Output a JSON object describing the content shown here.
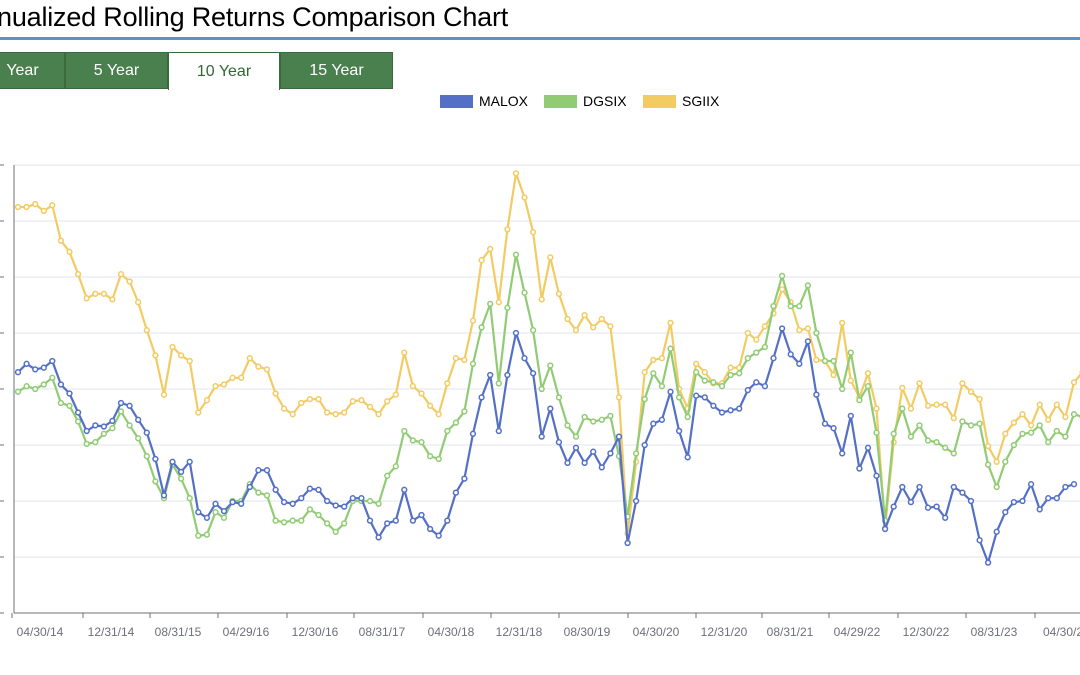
{
  "title": "nualized Rolling Returns Comparison Chart",
  "tabs": [
    {
      "label": "Year",
      "active": false
    },
    {
      "label": "5 Year",
      "active": false
    },
    {
      "label": "10 Year",
      "active": true
    },
    {
      "label": "15 Year",
      "active": false
    }
  ],
  "colors": {
    "MALOX": "#5470c6",
    "DGSIX": "#91cc75",
    "SGIIX": "#f2cb63"
  },
  "chart_data": {
    "type": "line",
    "title": "nualized Rolling Returns Comparison Chart",
    "xlabel": "",
    "ylabel": "",
    "ylim": [
      0,
      8
    ],
    "grid": true,
    "legend_position": "top-center",
    "x_tick_labels": [
      "04/30/14",
      "12/31/14",
      "08/31/15",
      "04/29/16",
      "12/30/16",
      "08/31/17",
      "04/30/18",
      "12/31/18",
      "08/30/19",
      "04/30/20",
      "12/31/20",
      "08/31/21",
      "04/29/22",
      "12/30/22",
      "08/31/23",
      "04/30/2"
    ],
    "series": [
      {
        "name": "MALOX",
        "values": [
          4.3,
          4.45,
          4.35,
          4.38,
          4.5,
          4.08,
          3.92,
          3.58,
          3.25,
          3.35,
          3.33,
          3.43,
          3.75,
          3.7,
          3.45,
          3.22,
          2.75,
          2.1,
          2.7,
          2.52,
          2.7,
          1.8,
          1.7,
          1.95,
          1.82,
          1.98,
          1.95,
          2.25,
          2.55,
          2.55,
          2.2,
          1.98,
          1.95,
          2.05,
          2.22,
          2.2,
          2.0,
          1.92,
          1.9,
          2.05,
          2.05,
          1.65,
          1.35,
          1.6,
          1.65,
          2.2,
          1.65,
          1.75,
          1.5,
          1.38,
          1.65,
          2.15,
          2.4,
          3.2,
          3.85,
          4.25,
          3.25,
          4.25,
          5.0,
          4.55,
          4.28,
          3.15,
          3.65,
          3.05,
          2.68,
          2.95,
          2.68,
          2.88,
          2.6,
          2.85,
          3.15,
          1.25,
          2.0,
          3.0,
          3.38,
          3.45,
          3.95,
          3.25,
          2.78,
          3.88,
          3.85,
          3.7,
          3.58,
          3.62,
          3.65,
          3.98,
          4.12,
          4.05,
          4.55,
          5.08,
          4.62,
          4.45,
          4.85,
          3.9,
          3.38,
          3.3,
          2.85,
          3.52,
          2.58,
          2.95,
          2.45,
          1.5,
          1.9,
          2.25,
          1.98,
          2.25,
          1.88,
          1.9,
          1.7,
          2.25,
          2.15,
          2.0,
          1.3,
          0.9,
          1.45,
          1.8,
          1.98,
          2.0,
          2.3,
          1.85,
          2.05,
          2.05,
          2.25,
          2.3
        ]
      },
      {
        "name": "DGSIX",
        "values": [
          3.95,
          4.05,
          4.0,
          4.08,
          4.2,
          3.75,
          3.7,
          3.42,
          3.02,
          3.05,
          3.2,
          3.3,
          3.6,
          3.35,
          3.12,
          2.8,
          2.35,
          2.05,
          2.65,
          2.4,
          2.05,
          1.38,
          1.4,
          1.8,
          1.7,
          2.0,
          2.0,
          2.3,
          2.15,
          2.1,
          1.65,
          1.62,
          1.65,
          1.65,
          1.85,
          1.75,
          1.6,
          1.45,
          1.6,
          2.0,
          2.0,
          2.0,
          1.95,
          2.45,
          2.62,
          3.25,
          3.08,
          3.05,
          2.8,
          2.75,
          3.25,
          3.4,
          3.6,
          4.45,
          5.1,
          5.52,
          4.1,
          5.45,
          6.4,
          5.72,
          5.05,
          4.0,
          4.42,
          3.85,
          3.35,
          3.15,
          3.5,
          3.42,
          3.45,
          3.52,
          2.8,
          1.72,
          2.85,
          3.82,
          4.28,
          4.05,
          4.72,
          3.85,
          3.5,
          4.3,
          4.15,
          4.12,
          4.05,
          4.25,
          4.28,
          4.55,
          4.65,
          4.75,
          5.48,
          6.02,
          5.48,
          5.48,
          5.85,
          5.0,
          4.5,
          4.5,
          4.0,
          4.65,
          3.8,
          4.05,
          3.22,
          1.65,
          3.2,
          3.65,
          3.15,
          3.35,
          3.08,
          3.05,
          2.95,
          2.85,
          3.42,
          3.35,
          3.38,
          2.65,
          2.25,
          2.7,
          3.0,
          3.2,
          3.22,
          3.35,
          3.05,
          3.25,
          3.15,
          3.55,
          3.5
        ]
      },
      {
        "name": "SGIIX",
        "values": [
          7.25,
          7.25,
          7.3,
          7.18,
          7.28,
          6.65,
          6.45,
          6.05,
          5.62,
          5.7,
          5.7,
          5.6,
          6.05,
          5.92,
          5.55,
          5.05,
          4.6,
          3.9,
          4.75,
          4.6,
          4.5,
          3.58,
          3.8,
          4.05,
          4.08,
          4.2,
          4.2,
          4.55,
          4.4,
          4.35,
          3.92,
          3.65,
          3.55,
          3.75,
          3.82,
          3.82,
          3.58,
          3.55,
          3.58,
          3.78,
          3.8,
          3.68,
          3.55,
          3.78,
          3.9,
          4.65,
          4.05,
          3.92,
          3.7,
          3.55,
          4.1,
          4.55,
          4.52,
          5.22,
          6.3,
          6.5,
          5.55,
          6.85,
          7.85,
          7.42,
          6.8,
          5.6,
          6.35,
          5.7,
          5.25,
          5.05,
          5.32,
          5.1,
          5.25,
          5.12,
          3.85,
          1.42,
          2.7,
          4.3,
          4.52,
          4.55,
          5.18,
          4.0,
          3.65,
          4.45,
          4.3,
          4.1,
          4.1,
          4.38,
          4.38,
          5.0,
          4.88,
          5.12,
          5.35,
          5.78,
          5.55,
          5.05,
          5.08,
          4.52,
          4.5,
          4.25,
          5.18,
          4.15,
          3.85,
          4.28,
          3.65,
          1.52,
          3.05,
          4.02,
          3.65,
          4.1,
          3.7,
          3.72,
          3.72,
          3.48,
          4.1,
          3.95,
          3.82,
          2.98,
          2.7,
          3.2,
          3.4,
          3.55,
          3.35,
          3.72,
          3.45,
          3.72,
          3.5,
          4.12,
          4.3
        ]
      }
    ]
  }
}
